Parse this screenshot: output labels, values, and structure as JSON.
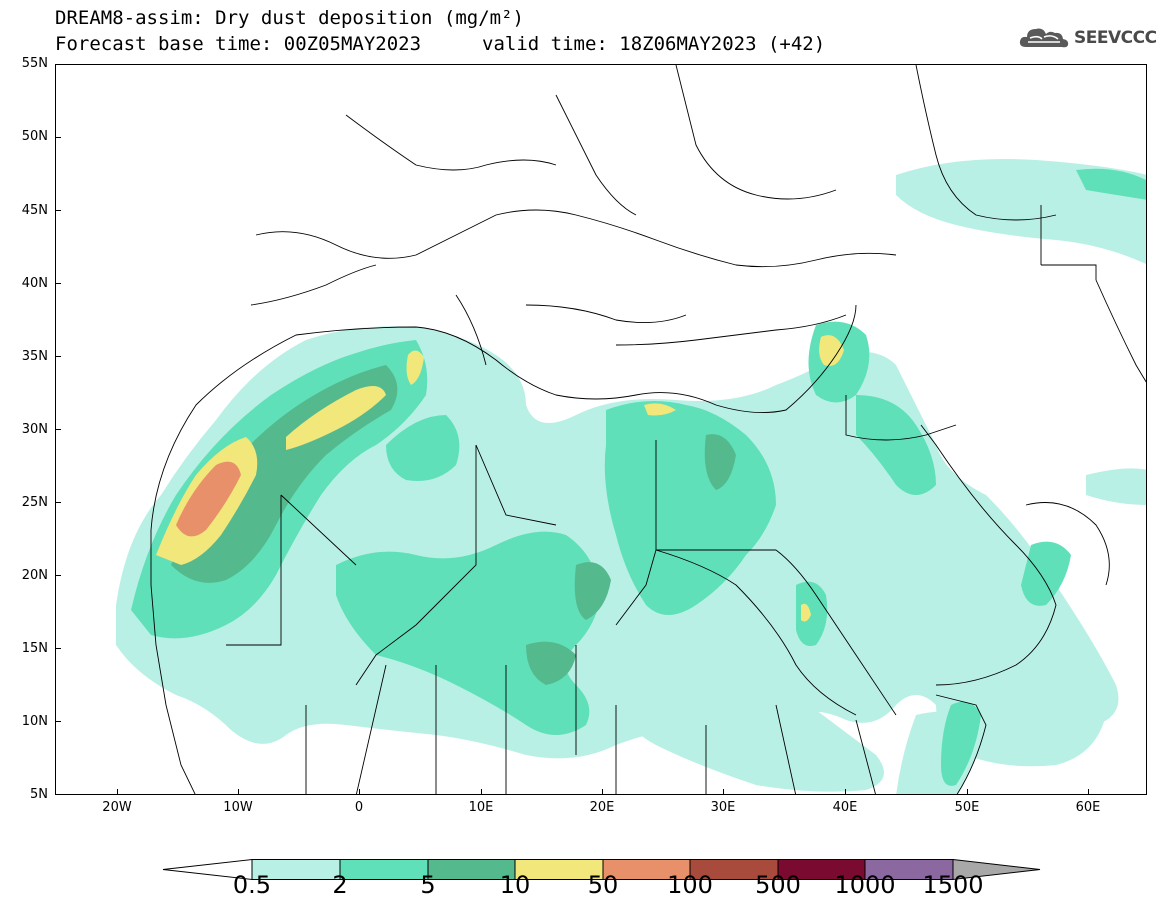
{
  "header": {
    "title": "DREAM8-assim: Dry dust deposition (mg/m²)",
    "base_time": "Forecast base time: 00Z05MAY2023",
    "valid_time": "valid time: 18Z06MAY2023 (+42)"
  },
  "logo": {
    "text": "SEEVCCC",
    "icon": "cloud-logo-icon"
  },
  "map": {
    "lat_labels": [
      "55N",
      "50N",
      "45N",
      "40N",
      "35N",
      "30N",
      "25N",
      "20N",
      "15N",
      "10N",
      "5N"
    ],
    "lon_labels": [
      "20W",
      "10W",
      "0",
      "10E",
      "20E",
      "30E",
      "40E",
      "50E",
      "60E"
    ]
  },
  "colorbar": {
    "labels": [
      "0.5",
      "2",
      "5",
      "10",
      "50",
      "100",
      "500",
      "1000",
      "1500"
    ],
    "colors": [
      "#b9f0e6",
      "#5fe0b8",
      "#55b98e",
      "#f2e77a",
      "#e8906a",
      "#a94b3c",
      "#7a0a30",
      "#8c68a0"
    ],
    "under_color": "#ffffff",
    "over_color": "#a8a8a8"
  }
}
